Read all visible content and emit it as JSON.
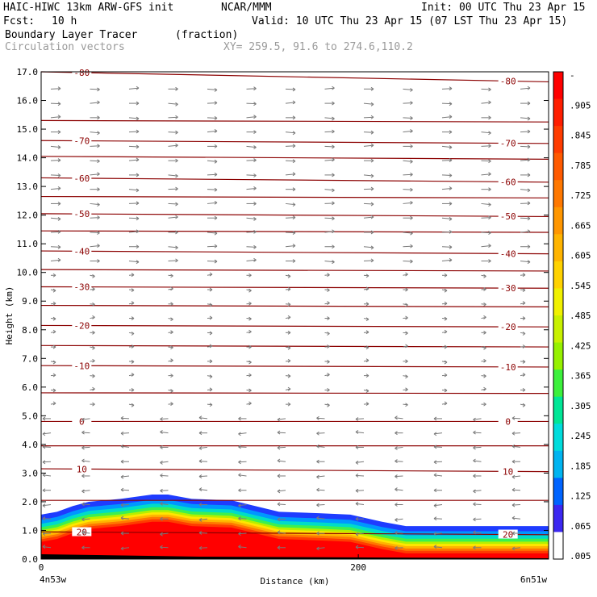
{
  "header": {
    "model": "HAIC-HIWC 13km ARW-GFS init",
    "org": "NCAR/MMM",
    "init": "Init: 00 UTC Thu 23 Apr 15",
    "fcst_label": "Fcst:",
    "fcst_value": "10 h",
    "valid": "Valid: 10 UTC Thu 23 Apr 15 (07 LST Thu 23 Apr 15)",
    "field_name": "Boundary Layer Tracer",
    "field_units": "(fraction)",
    "overlay_name": "Circulation vectors",
    "xy_range": "XY= 259.5, 91.6 to 274.6,110.2"
  },
  "chart_data": {
    "type": "heatmap",
    "ylabel": "Height (km)",
    "xlabel": "Distance (km)",
    "ylim": [
      0,
      17
    ],
    "xlim": [
      0,
      320
    ],
    "y_ticks": [
      "0.0",
      "1.0",
      "2.0",
      "3.0",
      "4.0",
      "5.0",
      "6.0",
      "7.0",
      "8.0",
      "9.0",
      "10.0",
      "11.0",
      "12.0",
      "13.0",
      "14.0",
      "15.0",
      "16.0",
      "17.0"
    ],
    "x_ticks": [
      {
        "value": 0,
        "label": "0"
      },
      {
        "value": 200,
        "label": "200"
      }
    ],
    "x_endpoints": {
      "left": "4n53w",
      "right": "6n51w"
    },
    "colorbar": {
      "labels": [
        "-",
        ".905",
        ".845",
        ".785",
        ".725",
        ".665",
        ".605",
        ".545",
        ".485",
        ".425",
        ".365",
        ".305",
        ".245",
        ".185",
        ".125",
        ".065",
        ".005"
      ],
      "colors": [
        "#ff0000",
        "#ff1e00",
        "#ff3c00",
        "#ff5a00",
        "#ff7800",
        "#ff9600",
        "#ffb400",
        "#ffd200",
        "#f0f000",
        "#c8f000",
        "#96f000",
        "#3cf03c",
        "#00e696",
        "#00dcdc",
        "#00b4f0",
        "#0064ff",
        "#3c28f0",
        "#ffffff"
      ]
    },
    "tracer_top_km": [
      {
        "x": 0,
        "top": 1.55
      },
      {
        "x": 10,
        "top": 1.65
      },
      {
        "x": 20,
        "top": 1.85
      },
      {
        "x": 30,
        "top": 2.0
      },
      {
        "x": 50,
        "top": 2.1
      },
      {
        "x": 70,
        "top": 2.25
      },
      {
        "x": 80,
        "top": 2.25
      },
      {
        "x": 95,
        "top": 2.1
      },
      {
        "x": 120,
        "top": 2.05
      },
      {
        "x": 135,
        "top": 1.85
      },
      {
        "x": 150,
        "top": 1.65
      },
      {
        "x": 175,
        "top": 1.6
      },
      {
        "x": 195,
        "top": 1.55
      },
      {
        "x": 215,
        "top": 1.3
      },
      {
        "x": 230,
        "top": 1.15
      },
      {
        "x": 260,
        "top": 1.15
      },
      {
        "x": 320,
        "top": 1.15
      }
    ],
    "isotherms": [
      {
        "label": "-80",
        "heights_km": [
          17.0,
          16.65
        ]
      },
      {
        "label": null,
        "heights_km": [
          15.3,
          15.25
        ]
      },
      {
        "label": "-70",
        "heights_km": [
          14.6,
          14.5
        ]
      },
      {
        "label": null,
        "heights_km": [
          14.05,
          13.95
        ]
      },
      {
        "label": "-60",
        "heights_km": [
          13.3,
          13.15
        ]
      },
      {
        "label": null,
        "heights_km": [
          12.65,
          12.6
        ]
      },
      {
        "label": "-50",
        "heights_km": [
          12.05,
          11.95
        ]
      },
      {
        "label": null,
        "heights_km": [
          11.45,
          11.4
        ]
      },
      {
        "label": "-40",
        "heights_km": [
          10.75,
          10.65
        ]
      },
      {
        "label": null,
        "heights_km": [
          10.1,
          10.05
        ]
      },
      {
        "label": "-30",
        "heights_km": [
          9.5,
          9.45
        ]
      },
      {
        "label": null,
        "heights_km": [
          8.85,
          8.8
        ]
      },
      {
        "label": "-20",
        "heights_km": [
          8.15,
          8.1
        ]
      },
      {
        "label": null,
        "heights_km": [
          7.45,
          7.4
        ]
      },
      {
        "label": "-10",
        "heights_km": [
          6.75,
          6.7
        ]
      },
      {
        "label": null,
        "heights_km": [
          5.8,
          5.78
        ]
      },
      {
        "label": "0",
        "heights_km": [
          4.8,
          4.8
        ]
      },
      {
        "label": null,
        "heights_km": [
          3.95,
          3.95
        ]
      },
      {
        "label": "10",
        "heights_km": [
          3.15,
          3.05
        ]
      },
      {
        "label": null,
        "heights_km": [
          2.05,
          2.05
        ]
      },
      {
        "label": "20",
        "heights_km": [
          0.95,
          0.85
        ]
      }
    ]
  }
}
